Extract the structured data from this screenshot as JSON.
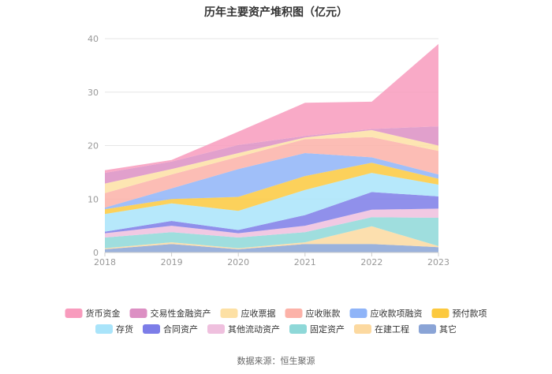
{
  "chart_data": {
    "type": "area",
    "stacked": true,
    "title": "历年主要资产堆积图（亿元）",
    "categories": [
      "2018",
      "2019",
      "2020",
      "2021",
      "2022",
      "2023"
    ],
    "yticks": [
      "0",
      "10",
      "20",
      "30",
      "40"
    ],
    "ylim": [
      0,
      40
    ],
    "xlabel": "",
    "ylabel": "",
    "series": [
      {
        "name": "其它",
        "color": "#8aa4d6",
        "values": [
          0.6,
          1.6,
          0.6,
          1.6,
          1.6,
          1.0
        ]
      },
      {
        "name": "在建工程",
        "color": "#fcd9a0",
        "values": [
          0.2,
          0.3,
          0.2,
          0.3,
          3.3,
          0.2
        ]
      },
      {
        "name": "固定资产",
        "color": "#8ed8d8",
        "values": [
          2.0,
          1.9,
          2.0,
          1.9,
          1.7,
          5.3
        ]
      },
      {
        "name": "其他流动资产",
        "color": "#efc0de",
        "values": [
          0.8,
          1.2,
          0.8,
          1.2,
          1.4,
          1.7
        ]
      },
      {
        "name": "合同资产",
        "color": "#7c7de8",
        "values": [
          0.3,
          0.9,
          0.6,
          2.0,
          3.3,
          2.3
        ]
      },
      {
        "name": "存货",
        "color": "#a9e4fa",
        "values": [
          3.3,
          3.3,
          3.6,
          4.7,
          3.6,
          2.2
        ]
      },
      {
        "name": "预付款项",
        "color": "#fcc93e",
        "values": [
          0.9,
          0.8,
          2.6,
          2.6,
          1.9,
          1.1
        ]
      },
      {
        "name": "应收款项融资",
        "color": "#8fb4f8",
        "values": [
          0.3,
          2.0,
          5.2,
          4.3,
          1.0,
          0.8
        ]
      },
      {
        "name": "应收账款",
        "color": "#fcb2a8",
        "values": [
          2.7,
          2.6,
          2.3,
          2.6,
          3.8,
          4.4
        ]
      },
      {
        "name": "应收票据",
        "color": "#fde0a4",
        "values": [
          1.8,
          1.0,
          0.7,
          0.3,
          1.3,
          1.0
        ]
      },
      {
        "name": "交易性金融资产",
        "color": "#dc8fc3",
        "values": [
          2.0,
          1.4,
          1.5,
          0.3,
          0.2,
          3.6
        ]
      },
      {
        "name": "货币资金",
        "color": "#f89bbd",
        "values": [
          0.5,
          0.3,
          2.5,
          6.2,
          5.1,
          15.4
        ]
      }
    ],
    "legend_order": [
      "货币资金",
      "交易性金融资产",
      "应收票据",
      "应收账款",
      "应收款项融资",
      "预付款项",
      "存货",
      "合同资产",
      "其他流动资产",
      "固定资产",
      "在建工程",
      "其它"
    ],
    "legend_position": "bottom",
    "grid": true
  },
  "source_text": "数据来源：恒生聚源"
}
